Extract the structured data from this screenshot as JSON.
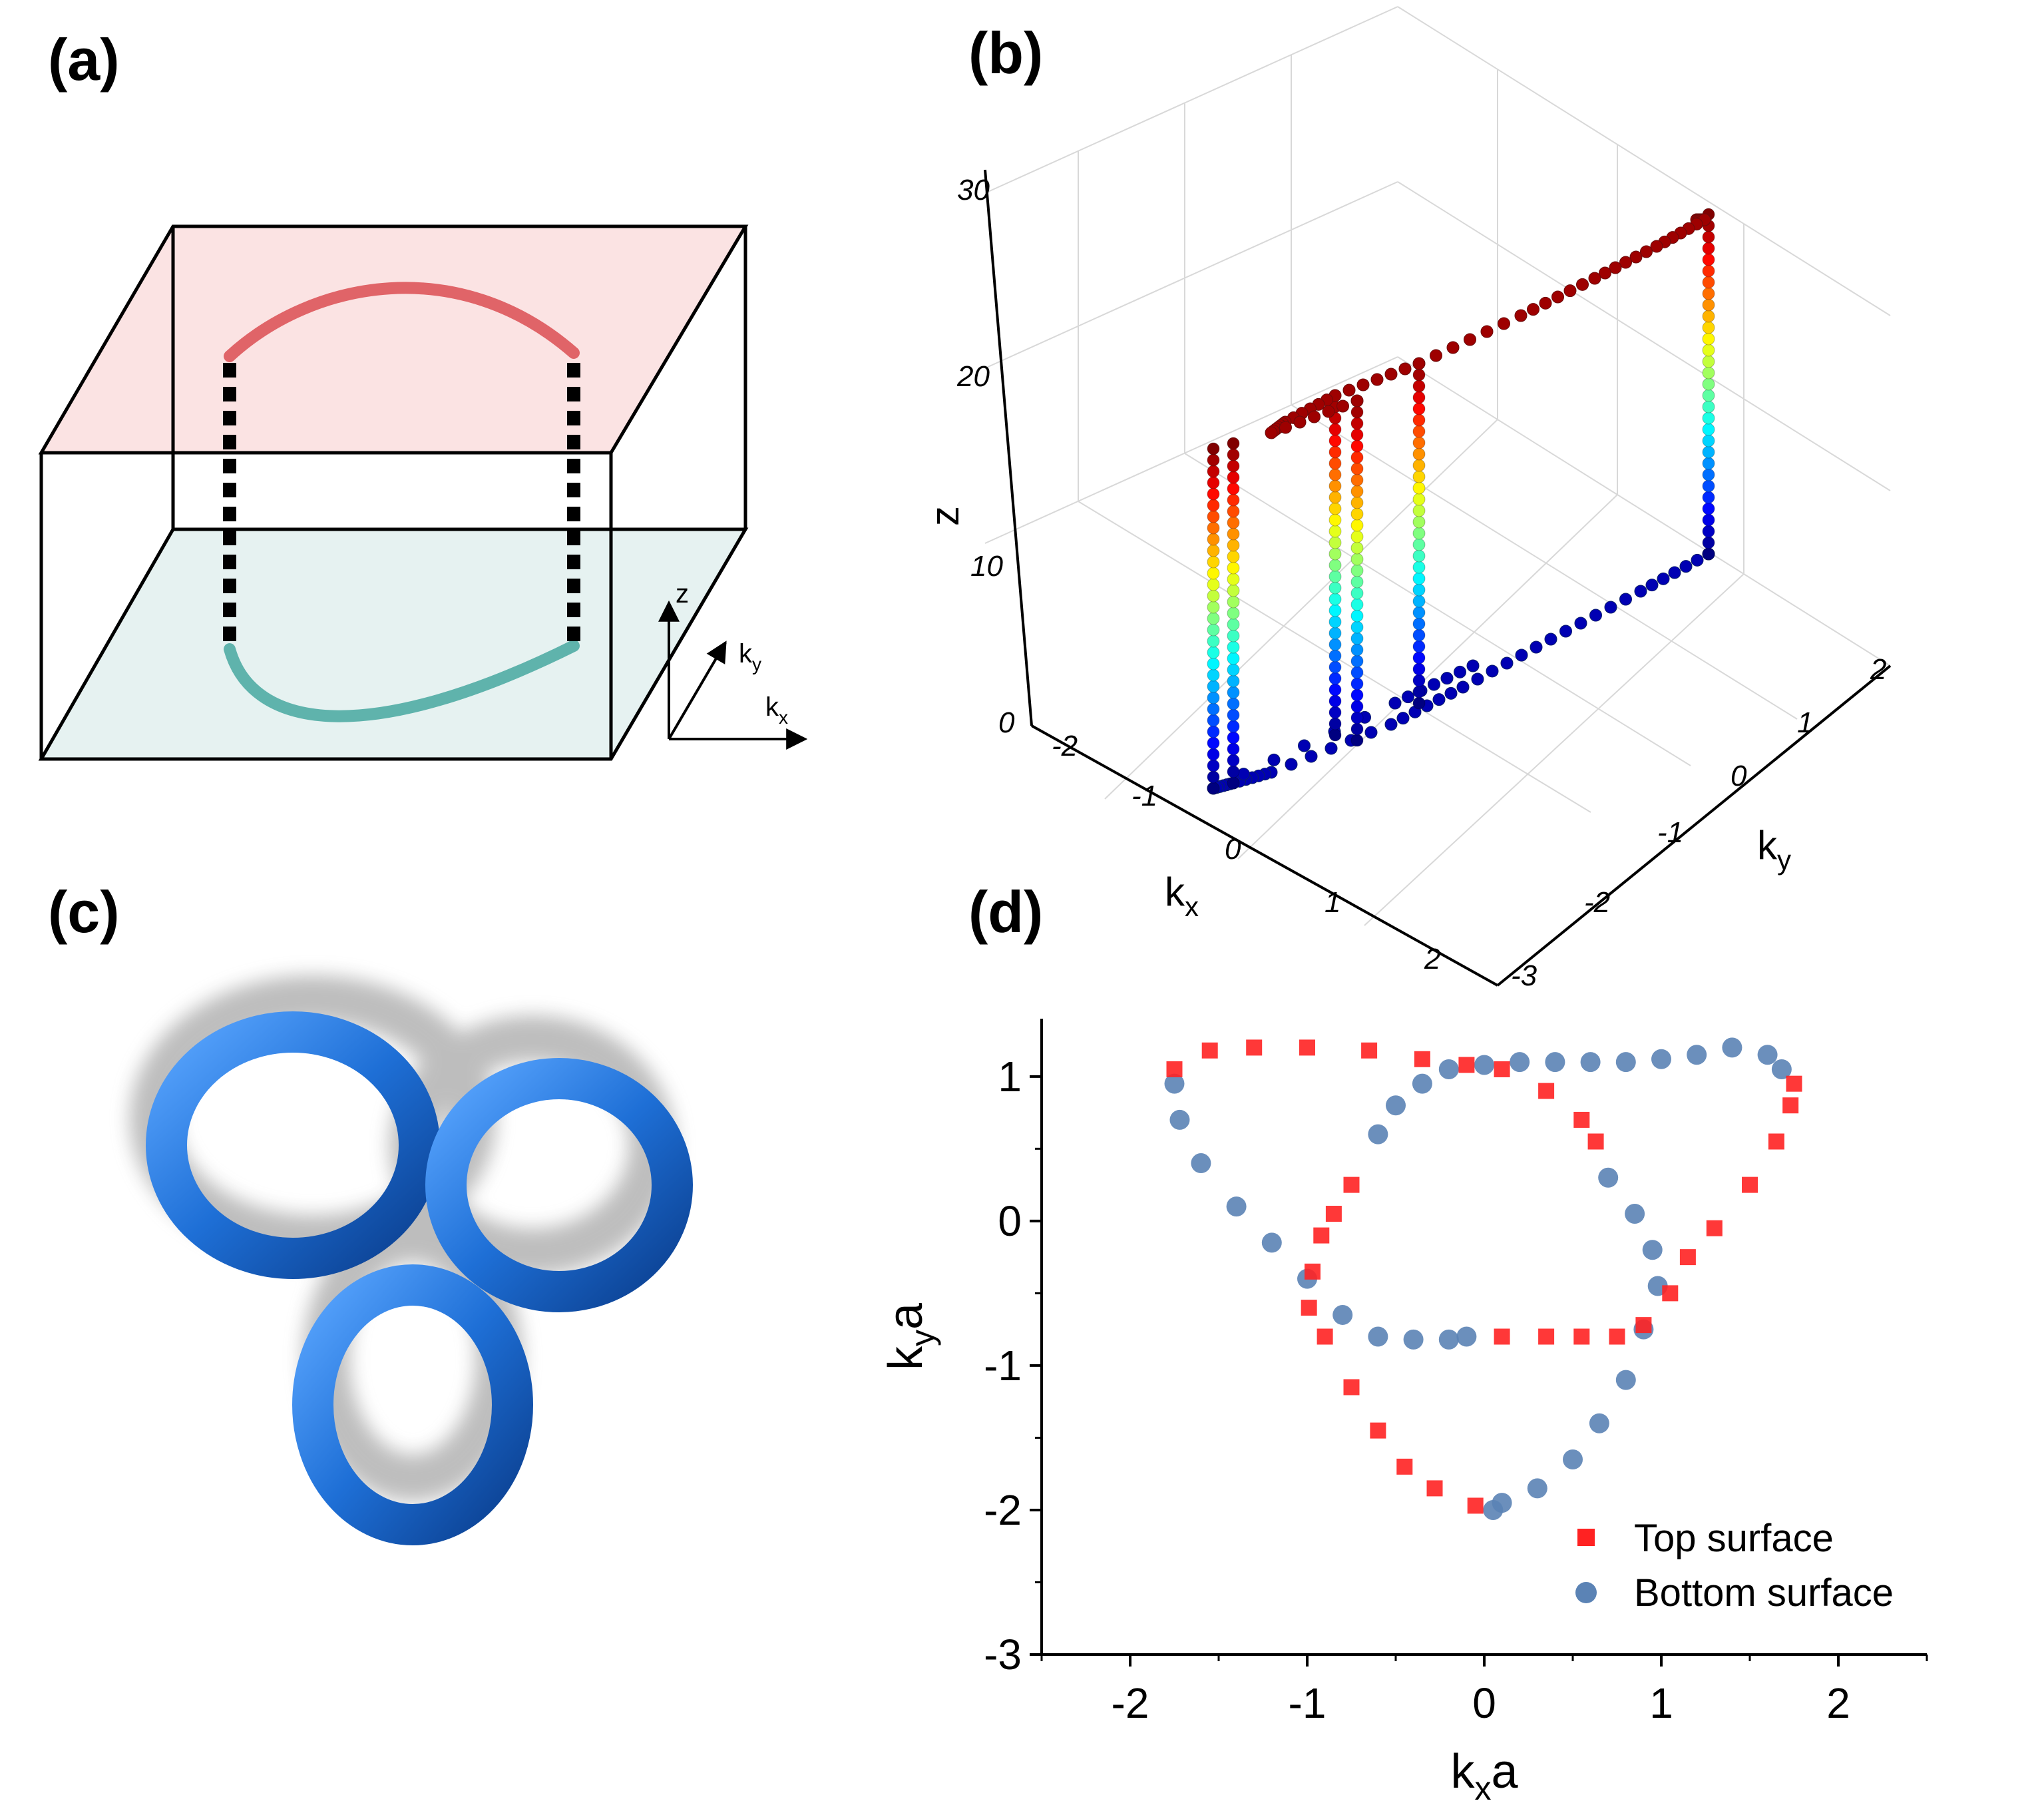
{
  "panels": {
    "a": {
      "label": "(a)",
      "axis_z": "z",
      "axis_ky": "k",
      "axis_ky_sub": "y",
      "axis_kx": "k",
      "axis_kx_sub": "x",
      "colors": {
        "top_plane": "#fbe3e3",
        "bottom_plane": "#e6f2f1",
        "top_arc": "#e06468",
        "bottom_arc": "#5fb3ac"
      }
    },
    "b": {
      "label": "(b)",
      "axis_z": "z",
      "axis_kx": "k",
      "axis_kx_sub": "x",
      "axis_ky": "k",
      "axis_ky_sub": "y",
      "z_ticks": [
        "0",
        "10",
        "20",
        "30"
      ],
      "kx_ticks": [
        "-2",
        "-1",
        "0",
        "1",
        "2"
      ],
      "ky_ticks": [
        "2",
        "1",
        "0",
        "-1",
        "-2",
        "-3"
      ]
    },
    "c": {
      "label": "(c)",
      "colors": {
        "tube": "#1e6fd6",
        "shadow": "#9c9c9c"
      }
    },
    "d": {
      "label": "(d)"
    }
  },
  "chart_data": [
    {
      "type": "scatter",
      "panel": "b",
      "title": "",
      "xlabel": "kx",
      "ylabel": "ky",
      "zlabel": "z",
      "xlim": [
        -2.5,
        2.5
      ],
      "ylim": [
        -3,
        2
      ],
      "zlim": [
        0,
        30
      ],
      "colormap": "jet (z)",
      "series": [
        {
          "description": "top curve at z = 30 (red)",
          "points_xyz": [
            [
              -1.7,
              0.8,
              30
            ],
            [
              -1.3,
              1.2,
              30
            ],
            [
              -0.7,
              1.3,
              30
            ],
            [
              -0.2,
              1.2,
              30
            ],
            [
              0.3,
              1.0,
              30
            ],
            [
              0.6,
              0.4,
              30
            ],
            [
              0.0,
              -0.8,
              30
            ],
            [
              0.5,
              -0.8,
              30
            ],
            [
              1.0,
              -0.5,
              30
            ],
            [
              1.7,
              0.8,
              30
            ]
          ]
        },
        {
          "description": "bottom curve at z = 0 (blue)",
          "points_xyz": [
            [
              -1.7,
              0.9,
              0
            ],
            [
              -0.9,
              1.0,
              0
            ],
            [
              0.0,
              1.0,
              0
            ],
            [
              1.0,
              1.1,
              0
            ],
            [
              1.6,
              1.0,
              0
            ],
            [
              1.0,
              -0.5,
              0
            ],
            [
              0.3,
              -1.4,
              0
            ],
            [
              -0.1,
              -1.9,
              0
            ],
            [
              -0.6,
              -0.8,
              0
            ],
            [
              -0.9,
              -0.4,
              0
            ]
          ]
        },
        {
          "description": "vertical connecting strings (colored by z)",
          "columns_xy": [
            [
              -1.7,
              0.9
            ],
            [
              1.7,
              0.8
            ],
            [
              0.6,
              0.4
            ],
            [
              0.0,
              -0.8
            ],
            [
              -0.1,
              -1.9
            ],
            [
              0.3,
              -1.4
            ]
          ]
        }
      ]
    },
    {
      "type": "scatter",
      "panel": "d",
      "title": "",
      "xlabel": "k",
      "xlabel_sub": "x",
      "xlabel_tail": "a",
      "ylabel": "k",
      "ylabel_sub": "y",
      "ylabel_tail": "a",
      "xlim": [
        -2.5,
        2.5
      ],
      "ylim": [
        -3,
        1.4
      ],
      "x_ticks": [
        "-2",
        "-1",
        "0",
        "1",
        "2"
      ],
      "y_ticks": [
        "-3",
        "-2",
        "-1",
        "0",
        "1"
      ],
      "legend_position": "bottom-right",
      "series": [
        {
          "name": "Top surface",
          "marker": "square",
          "color": "#ff2222",
          "x": [
            -1.75,
            -1.55,
            -1.3,
            -1.0,
            -0.65,
            -0.35,
            -0.1,
            0.1,
            0.35,
            0.55,
            0.63,
            -0.75,
            -0.85,
            -0.92,
            -0.97,
            -0.99,
            -0.9,
            -0.75,
            -0.6,
            -0.45,
            -0.28,
            -0.05,
            0.1,
            0.35,
            0.55,
            0.75,
            0.9,
            1.05,
            1.15,
            1.3,
            1.5,
            1.65,
            1.73,
            1.75
          ],
          "y": [
            1.05,
            1.18,
            1.2,
            1.2,
            1.18,
            1.12,
            1.08,
            1.05,
            0.9,
            0.7,
            0.55,
            0.25,
            0.05,
            -0.1,
            -0.35,
            -0.6,
            -0.8,
            -1.15,
            -1.45,
            -1.7,
            -1.85,
            -1.97,
            -0.8,
            -0.8,
            -0.8,
            -0.8,
            -0.72,
            -0.5,
            -0.25,
            -0.05,
            0.25,
            0.55,
            0.8,
            0.95
          ]
        },
        {
          "name": "Bottom surface",
          "marker": "circle",
          "color": "#5b83b5",
          "x": [
            -1.75,
            -1.72,
            -1.6,
            -1.4,
            -1.2,
            -1.0,
            -0.8,
            -0.6,
            -0.4,
            -0.2,
            -0.1,
            -0.6,
            -0.5,
            -0.35,
            -0.2,
            0.0,
            0.2,
            0.4,
            0.6,
            0.8,
            1.0,
            1.2,
            1.4,
            1.6,
            1.68,
            0.7,
            0.85,
            0.95,
            0.98,
            0.9,
            0.8,
            0.65,
            0.5,
            0.3,
            0.1,
            0.05
          ],
          "y": [
            0.95,
            0.7,
            0.4,
            0.1,
            -0.15,
            -0.4,
            -0.65,
            -0.8,
            -0.82,
            -0.82,
            -0.8,
            0.6,
            0.8,
            0.95,
            1.05,
            1.08,
            1.1,
            1.1,
            1.1,
            1.1,
            1.12,
            1.15,
            1.2,
            1.15,
            1.05,
            0.3,
            0.05,
            -0.2,
            -0.45,
            -0.75,
            -1.1,
            -1.4,
            -1.65,
            -1.85,
            -1.95,
            -2.0
          ]
        }
      ]
    }
  ]
}
